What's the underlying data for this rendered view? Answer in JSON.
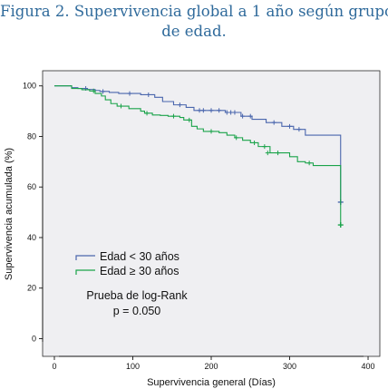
{
  "figure": {
    "title_line1": "Figura 2. Supervivencia global a 1 año según grupo",
    "title_line2": "de edad."
  },
  "chart_data": {
    "type": "line",
    "step": true,
    "xlabel": "Supervivencia general (Días)",
    "ylabel": "Supervivencia acumulada (%)",
    "xlim": [
      -15,
      415
    ],
    "ylim": [
      -7,
      106
    ],
    "xticks": [
      0,
      100,
      200,
      300,
      400
    ],
    "yticks": [
      0,
      20,
      40,
      60,
      80,
      100
    ],
    "background": "#efeff2",
    "grid": false,
    "legend_position": "middle-left",
    "annotation": {
      "line1": "Prueba de log-Rank",
      "line2": "p = 0.050"
    },
    "series": [
      {
        "name": "Edad < 30 años",
        "color": "#4a66ad",
        "x": [
          0,
          22,
          30,
          42,
          52,
          58,
          70,
          82,
          110,
          128,
          138,
          152,
          168,
          178,
          218,
          238,
          252,
          270,
          290,
          305,
          320,
          365,
          365
        ],
        "y": [
          100,
          99.3,
          99,
          98.6,
          98.2,
          97.8,
          97.4,
          97,
          96.5,
          95.5,
          93.8,
          92.5,
          91.5,
          90.3,
          89.5,
          88,
          86.8,
          85.5,
          84,
          82.8,
          80.5,
          80,
          54
        ],
        "censored_x": [
          40,
          62,
          96,
          120,
          160,
          185,
          190,
          200,
          210,
          220,
          225,
          230,
          240,
          250,
          280,
          300,
          312
        ],
        "censored_y": [
          99,
          97.8,
          97,
          96.5,
          92.5,
          90.3,
          90.3,
          90.3,
          90.3,
          89.5,
          89.5,
          89.5,
          88,
          88,
          85.5,
          84,
          82.8
        ],
        "end_marker": [
          365,
          54
        ]
      },
      {
        "name": "Edad ≥ 30 años",
        "color": "#1aa34a",
        "x": [
          0,
          22,
          35,
          45,
          52,
          60,
          65,
          72,
          80,
          95,
          110,
          115,
          125,
          135,
          145,
          160,
          165,
          175,
          182,
          190,
          210,
          220,
          230,
          240,
          250,
          260,
          275,
          300,
          310,
          320,
          330,
          365,
          365
        ],
        "y": [
          100,
          99,
          98.5,
          98,
          97,
          96,
          94.5,
          93,
          92,
          91,
          90,
          89.2,
          88.5,
          88.3,
          88,
          87.5,
          86.5,
          84,
          83,
          82,
          81.5,
          80.5,
          79.5,
          78.5,
          77.5,
          76,
          73.5,
          72,
          70,
          69.5,
          68.5,
          65.5,
          45
        ],
        "censored_x": [
          50,
          85,
          118,
          152,
          172,
          200,
          232,
          255,
          268,
          272,
          285,
          325
        ],
        "censored_y": [
          98,
          92,
          89.2,
          88,
          86.5,
          82,
          79.5,
          77.5,
          76,
          73.5,
          73.5,
          69.5
        ],
        "end_marker": [
          365,
          45
        ]
      }
    ]
  }
}
